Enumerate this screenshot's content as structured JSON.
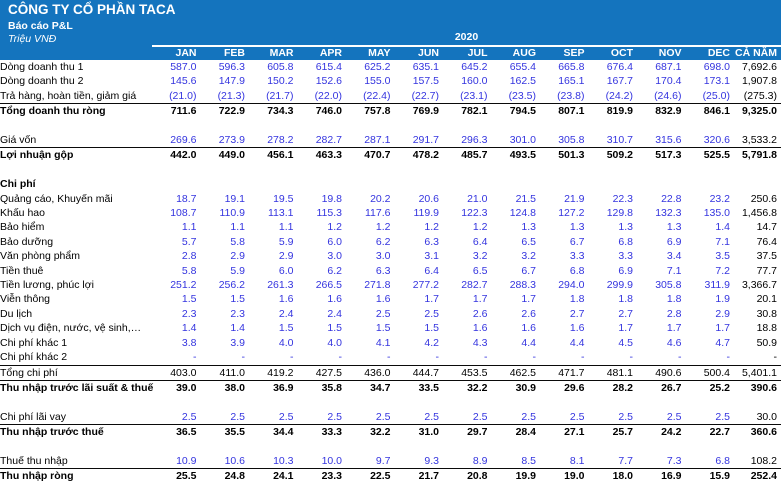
{
  "header": {
    "company": "CÔNG TY CỔ PHẦN TACA",
    "report": "Báo cáo P&L",
    "unit": "Triệu VNĐ",
    "year": "2020",
    "band_color": "#1474BE",
    "input_value_color": "#3434DF"
  },
  "table": {
    "columns": [
      "JAN",
      "FEB",
      "MAR",
      "APR",
      "MAY",
      "JUN",
      "JUL",
      "AUG",
      "SEP",
      "OCT",
      "NOV",
      "DEC",
      "CẢ NĂM"
    ],
    "rows": [
      {
        "id": "dong-doanh-thu-1",
        "label": "Dòng doanh thu 1",
        "style": "input",
        "values": [
          "587.0",
          "596.3",
          "605.8",
          "615.4",
          "625.2",
          "635.1",
          "645.2",
          "655.4",
          "665.8",
          "676.4",
          "687.1",
          "698.0",
          "7,692.6"
        ]
      },
      {
        "id": "dong-doanh-thu-2",
        "label": "Dòng doanh thu 2",
        "style": "input",
        "values": [
          "145.6",
          "147.9",
          "150.2",
          "152.6",
          "155.0",
          "157.5",
          "160.0",
          "162.5",
          "165.1",
          "167.7",
          "170.4",
          "173.1",
          "1,907.8"
        ]
      },
      {
        "id": "tra-hang",
        "label": "Trả hàng, hoàn tiền, giảm giá",
        "style": "input",
        "border": true,
        "values": [
          "(21.0)",
          "(21.3)",
          "(21.7)",
          "(22.0)",
          "(22.4)",
          "(22.7)",
          "(23.1)",
          "(23.5)",
          "(23.8)",
          "(24.2)",
          "(24.6)",
          "(25.0)",
          "(275.3)"
        ]
      },
      {
        "id": "tong-doanh-thu-rong",
        "label": "Tổng doanh thu ròng",
        "style": "total",
        "values": [
          "711.6",
          "722.9",
          "734.3",
          "746.0",
          "757.8",
          "769.9",
          "782.1",
          "794.5",
          "807.1",
          "819.9",
          "832.9",
          "846.1",
          "9,325.0"
        ]
      },
      {
        "id": "blank-1",
        "style": "blank"
      },
      {
        "id": "gia-von",
        "label": "Giá vốn",
        "style": "input",
        "border": true,
        "values": [
          "269.6",
          "273.9",
          "278.2",
          "282.7",
          "287.1",
          "291.7",
          "296.3",
          "301.0",
          "305.8",
          "310.7",
          "315.6",
          "320.6",
          "3,533.2"
        ]
      },
      {
        "id": "loi-nhuan-gop",
        "label": "Lợi nhuận gộp",
        "style": "total",
        "values": [
          "442.0",
          "449.0",
          "456.1",
          "463.3",
          "470.7",
          "478.2",
          "485.7",
          "493.5",
          "501.3",
          "509.2",
          "517.3",
          "525.5",
          "5,791.8"
        ]
      },
      {
        "id": "blank-2",
        "style": "blank"
      },
      {
        "id": "chi-phi-header",
        "label": "Chi phí",
        "style": "section"
      },
      {
        "id": "quang-cao",
        "label": "Quảng cáo, Khuyến mãi",
        "style": "input",
        "values": [
          "18.7",
          "19.1",
          "19.5",
          "19.8",
          "20.2",
          "20.6",
          "21.0",
          "21.5",
          "21.9",
          "22.3",
          "22.8",
          "23.2",
          "250.6"
        ]
      },
      {
        "id": "khau-hao",
        "label": "Khấu hao",
        "style": "input",
        "values": [
          "108.7",
          "110.9",
          "113.1",
          "115.3",
          "117.6",
          "119.9",
          "122.3",
          "124.8",
          "127.2",
          "129.8",
          "132.3",
          "135.0",
          "1,456.8"
        ]
      },
      {
        "id": "bao-hiem",
        "label": "Bảo hiểm",
        "style": "input",
        "values": [
          "1.1",
          "1.1",
          "1.1",
          "1.2",
          "1.2",
          "1.2",
          "1.2",
          "1.3",
          "1.3",
          "1.3",
          "1.3",
          "1.4",
          "14.7"
        ]
      },
      {
        "id": "bao-duong",
        "label": "Bảo dưỡng",
        "style": "input",
        "values": [
          "5.7",
          "5.8",
          "5.9",
          "6.0",
          "6.2",
          "6.3",
          "6.4",
          "6.5",
          "6.7",
          "6.8",
          "6.9",
          "7.1",
          "76.4"
        ]
      },
      {
        "id": "van-phong-pham",
        "label": "Văn phòng phẩm",
        "style": "input",
        "values": [
          "2.8",
          "2.9",
          "2.9",
          "3.0",
          "3.0",
          "3.1",
          "3.2",
          "3.2",
          "3.3",
          "3.3",
          "3.4",
          "3.5",
          "37.5"
        ]
      },
      {
        "id": "tien-thue",
        "label": "Tiền thuê",
        "style": "input",
        "values": [
          "5.8",
          "5.9",
          "6.0",
          "6.2",
          "6.3",
          "6.4",
          "6.5",
          "6.7",
          "6.8",
          "6.9",
          "7.1",
          "7.2",
          "77.7"
        ]
      },
      {
        "id": "tien-luong",
        "label": "Tiền lương, phúc lợi",
        "style": "input",
        "values": [
          "251.2",
          "256.2",
          "261.3",
          "266.5",
          "271.8",
          "277.2",
          "282.7",
          "288.3",
          "294.0",
          "299.9",
          "305.8",
          "311.9",
          "3,366.7"
        ]
      },
      {
        "id": "vien-thong",
        "label": "Viễn thông",
        "style": "input",
        "values": [
          "1.5",
          "1.5",
          "1.6",
          "1.6",
          "1.6",
          "1.7",
          "1.7",
          "1.7",
          "1.8",
          "1.8",
          "1.8",
          "1.9",
          "20.1"
        ]
      },
      {
        "id": "du-lich",
        "label": "Du lịch",
        "style": "input",
        "values": [
          "2.3",
          "2.3",
          "2.4",
          "2.4",
          "2.5",
          "2.5",
          "2.6",
          "2.6",
          "2.7",
          "2.7",
          "2.8",
          "2.9",
          "30.8"
        ]
      },
      {
        "id": "dich-vu",
        "label": "Dịch vụ điện, nước, vệ sinh,…",
        "style": "input",
        "values": [
          "1.4",
          "1.4",
          "1.5",
          "1.5",
          "1.5",
          "1.5",
          "1.6",
          "1.6",
          "1.6",
          "1.7",
          "1.7",
          "1.7",
          "18.8"
        ]
      },
      {
        "id": "chi-phi-khac-1",
        "label": "Chi phí khác 1",
        "style": "input",
        "values": [
          "3.8",
          "3.9",
          "4.0",
          "4.0",
          "4.1",
          "4.2",
          "4.3",
          "4.4",
          "4.4",
          "4.5",
          "4.6",
          "4.7",
          "50.9"
        ]
      },
      {
        "id": "chi-phi-khac-2",
        "label": "Chi phí khác 2",
        "style": "input",
        "border": true,
        "values": [
          "-",
          "-",
          "-",
          "-",
          "-",
          "-",
          "-",
          "-",
          "-",
          "-",
          "-",
          "-",
          "-"
        ]
      },
      {
        "id": "tong-chi-phi",
        "label": "Tổng chi phí",
        "style": "plain",
        "border": true,
        "values": [
          "403.0",
          "411.0",
          "419.2",
          "427.5",
          "436.0",
          "444.7",
          "453.5",
          "462.5",
          "471.7",
          "481.1",
          "490.6",
          "500.4",
          "5,401.1"
        ]
      },
      {
        "id": "ebit",
        "label": "Thu nhập trước lãi suất & thuế",
        "style": "total",
        "values": [
          "39.0",
          "38.0",
          "36.9",
          "35.8",
          "34.7",
          "33.5",
          "32.2",
          "30.9",
          "29.6",
          "28.2",
          "26.7",
          "25.2",
          "390.6"
        ]
      },
      {
        "id": "blank-3",
        "style": "blank"
      },
      {
        "id": "chi-phi-lai-vay",
        "label": "Chi phí lãi vay",
        "style": "input",
        "border": true,
        "values": [
          "2.5",
          "2.5",
          "2.5",
          "2.5",
          "2.5",
          "2.5",
          "2.5",
          "2.5",
          "2.5",
          "2.5",
          "2.5",
          "2.5",
          "30.0"
        ]
      },
      {
        "id": "thu-nhap-truoc-thue",
        "label": "Thu nhập trước thuế",
        "style": "total",
        "values": [
          "36.5",
          "35.5",
          "34.4",
          "33.3",
          "32.2",
          "31.0",
          "29.7",
          "28.4",
          "27.1",
          "25.7",
          "24.2",
          "22.7",
          "360.6"
        ]
      },
      {
        "id": "blank-4",
        "style": "blank"
      },
      {
        "id": "thue-thu-nhap",
        "label": "Thuế thu nhập",
        "style": "input",
        "border": true,
        "values": [
          "10.9",
          "10.6",
          "10.3",
          "10.0",
          "9.7",
          "9.3",
          "8.9",
          "8.5",
          "8.1",
          "7.7",
          "7.3",
          "6.8",
          "108.2"
        ]
      },
      {
        "id": "thu-nhap-rong",
        "label": "Thu nhập ròng",
        "style": "total",
        "values": [
          "25.5",
          "24.8",
          "24.1",
          "23.3",
          "22.5",
          "21.7",
          "20.8",
          "19.9",
          "19.0",
          "18.0",
          "16.9",
          "15.9",
          "252.4"
        ]
      }
    ]
  }
}
